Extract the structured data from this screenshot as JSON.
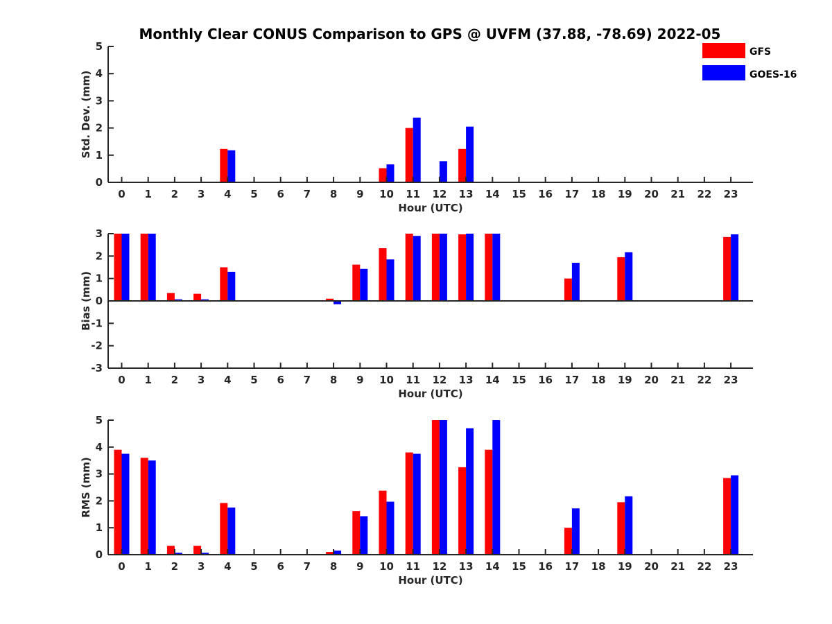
{
  "chart_data": {
    "type": "bar",
    "title": "Monthly Clear CONUS Comparison to GPS @ UVFM (37.88, -78.69) 2022-05",
    "legend": {
      "position": "top-right",
      "entries": [
        {
          "name": "GFS",
          "color": "#ff0000"
        },
        {
          "name": "GOES-16",
          "color": "#0000ff"
        }
      ]
    },
    "categories": [
      "0",
      "1",
      "2",
      "3",
      "4",
      "5",
      "6",
      "7",
      "8",
      "9",
      "10",
      "11",
      "12",
      "13",
      "14",
      "15",
      "16",
      "17",
      "18",
      "19",
      "20",
      "21",
      "22",
      "23"
    ],
    "panels": [
      {
        "ylabel": "Std. Dev. (mm)",
        "xlabel": "Hour (UTC)",
        "ylim": [
          0,
          5
        ],
        "yticks": [
          0,
          1,
          2,
          3,
          4,
          5
        ],
        "series": [
          {
            "name": "GFS",
            "values": [
              null,
              null,
              null,
              null,
              1.23,
              null,
              null,
              null,
              null,
              null,
              0.52,
              2.0,
              null,
              1.23,
              null,
              null,
              null,
              null,
              null,
              null,
              null,
              null,
              null,
              null
            ]
          },
          {
            "name": "GOES-16",
            "values": [
              null,
              null,
              null,
              null,
              1.18,
              null,
              null,
              null,
              null,
              null,
              0.66,
              2.38,
              0.78,
              2.05,
              null,
              null,
              null,
              null,
              null,
              null,
              null,
              null,
              null,
              null
            ]
          }
        ]
      },
      {
        "ylabel": "Bias (mm)",
        "xlabel": "Hour (UTC)",
        "ylim": [
          -3,
          3
        ],
        "yticks": [
          -3,
          -2,
          -1,
          0,
          1,
          2,
          3
        ],
        "series": [
          {
            "name": "GFS",
            "values": [
              3.0,
              3.0,
              0.35,
              0.32,
              1.5,
              null,
              null,
              null,
              0.1,
              1.62,
              2.35,
              3.0,
              3.0,
              2.97,
              3.0,
              null,
              null,
              1.0,
              null,
              1.95,
              null,
              null,
              null,
              2.85
            ]
          },
          {
            "name": "GOES-16",
            "values": [
              3.0,
              3.0,
              0.07,
              0.07,
              1.3,
              null,
              null,
              null,
              -0.15,
              1.43,
              1.85,
              2.9,
              3.0,
              3.0,
              3.0,
              null,
              null,
              1.7,
              null,
              2.17,
              null,
              null,
              null,
              2.97
            ]
          }
        ]
      },
      {
        "ylabel": "RMS (mm)",
        "xlabel": "Hour (UTC)",
        "ylim": [
          0,
          5
        ],
        "yticks": [
          0,
          1,
          2,
          3,
          4,
          5
        ],
        "series": [
          {
            "name": "GFS",
            "values": [
              3.9,
              3.6,
              0.33,
              0.33,
              1.92,
              null,
              null,
              null,
              0.1,
              1.62,
              2.38,
              3.8,
              5.0,
              3.25,
              3.9,
              null,
              null,
              1.0,
              null,
              1.95,
              null,
              null,
              null,
              2.85
            ]
          },
          {
            "name": "GOES-16",
            "values": [
              3.75,
              3.5,
              0.07,
              0.07,
              1.75,
              null,
              null,
              null,
              0.15,
              1.43,
              1.97,
              3.75,
              5.0,
              4.7,
              5.0,
              null,
              null,
              1.72,
              null,
              2.17,
              null,
              null,
              null,
              2.95
            ]
          }
        ]
      }
    ]
  }
}
